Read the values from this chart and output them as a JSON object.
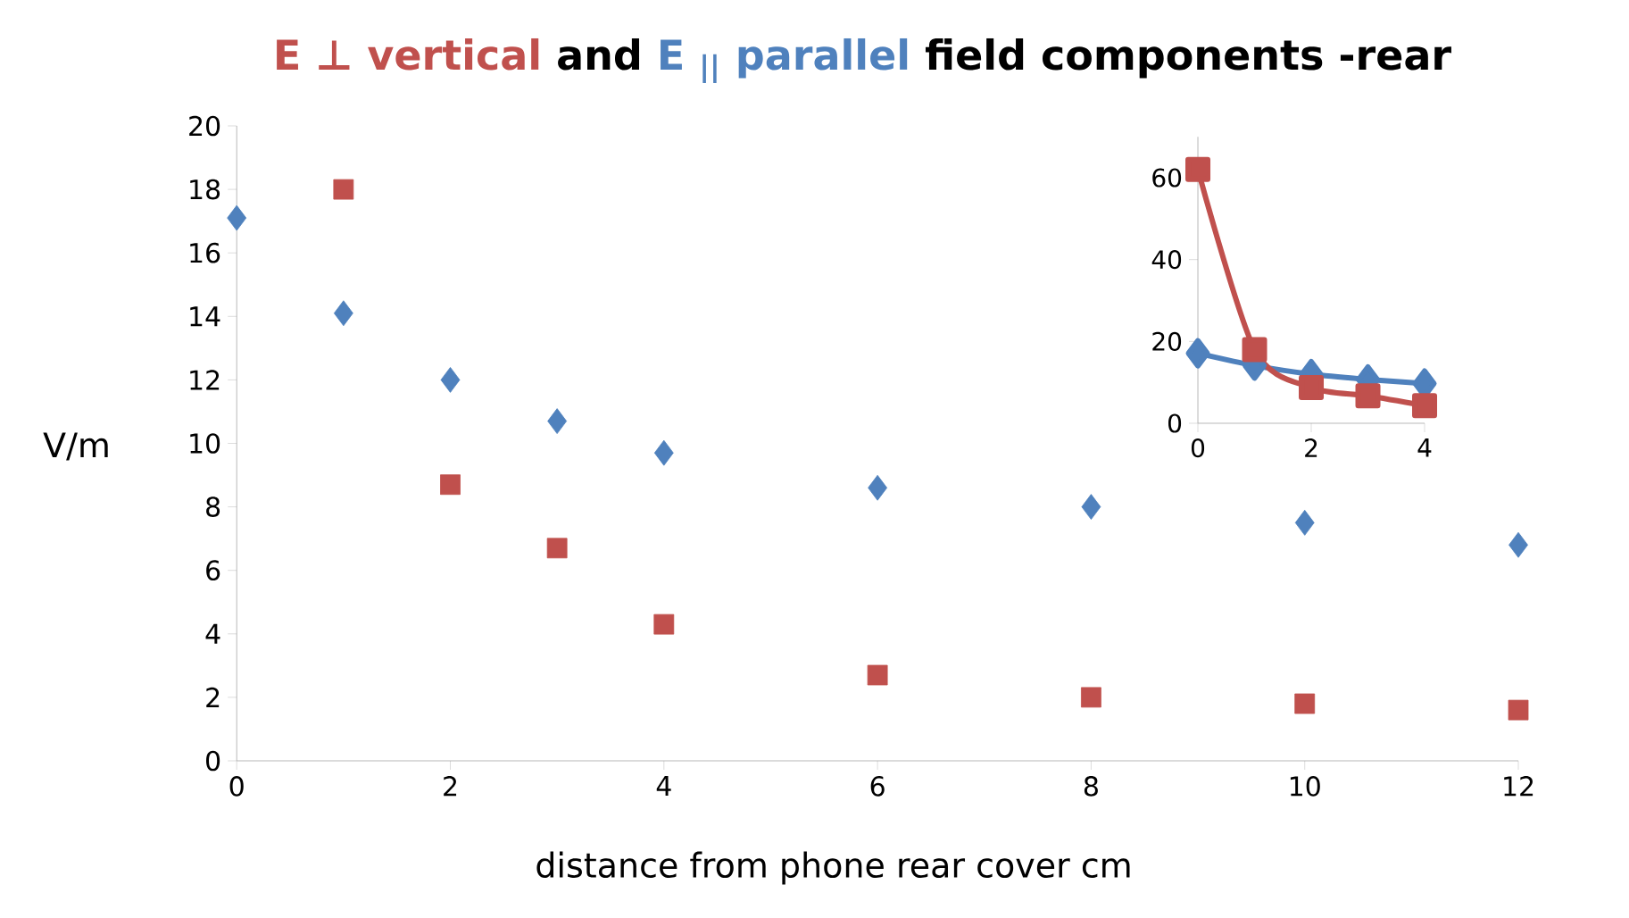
{
  "chart_data": [
    {
      "type": "scatter",
      "title": "field components -rear",
      "annotations": [
        "and"
      ],
      "xlabel": "distance from phone  rear cover   cm",
      "ylabel": "V/m",
      "x": [
        0,
        1,
        2,
        3,
        4,
        6,
        8,
        10,
        12
      ],
      "series": [
        {
          "name": "E ⊥ vertical",
          "color": "#c0504d",
          "marker": "square",
          "values": [
            null,
            18.0,
            8.7,
            6.7,
            4.3,
            2.7,
            2.0,
            1.8,
            1.6
          ]
        },
        {
          "name": "E $_{||}$ parallel",
          "color": "#4f81bd",
          "marker": "diamond",
          "values": [
            17.1,
            14.1,
            12.0,
            10.7,
            9.7,
            8.6,
            8.0,
            7.5,
            6.8
          ]
        }
      ],
      "xlim": [
        0,
        12
      ],
      "ylim": [
        0,
        20
      ],
      "xticks": [
        0,
        2,
        4,
        6,
        8,
        10,
        12
      ],
      "yticks": [
        0,
        2,
        4,
        6,
        8,
        10,
        12,
        14,
        16,
        18,
        20
      ],
      "legend": false,
      "grid": false
    },
    {
      "type": "line",
      "x": [
        0,
        1,
        2,
        3,
        4
      ],
      "series": [
        {
          "color": "#4f81bd",
          "marker": "diamond",
          "values": [
            17.1,
            14.1,
            12.0,
            10.7,
            9.7
          ]
        },
        {
          "color": "#c0504d",
          "marker": "square",
          "values": [
            62,
            18.0,
            8.7,
            6.7,
            4.3
          ]
        }
      ],
      "xlim": [
        0,
        4
      ],
      "ylim": [
        0,
        70
      ],
      "xticks": [
        0,
        2,
        4
      ],
      "yticks": [
        0,
        20,
        40,
        60
      ],
      "line_style": "solid",
      "legend": false,
      "grid": false
    }
  ]
}
